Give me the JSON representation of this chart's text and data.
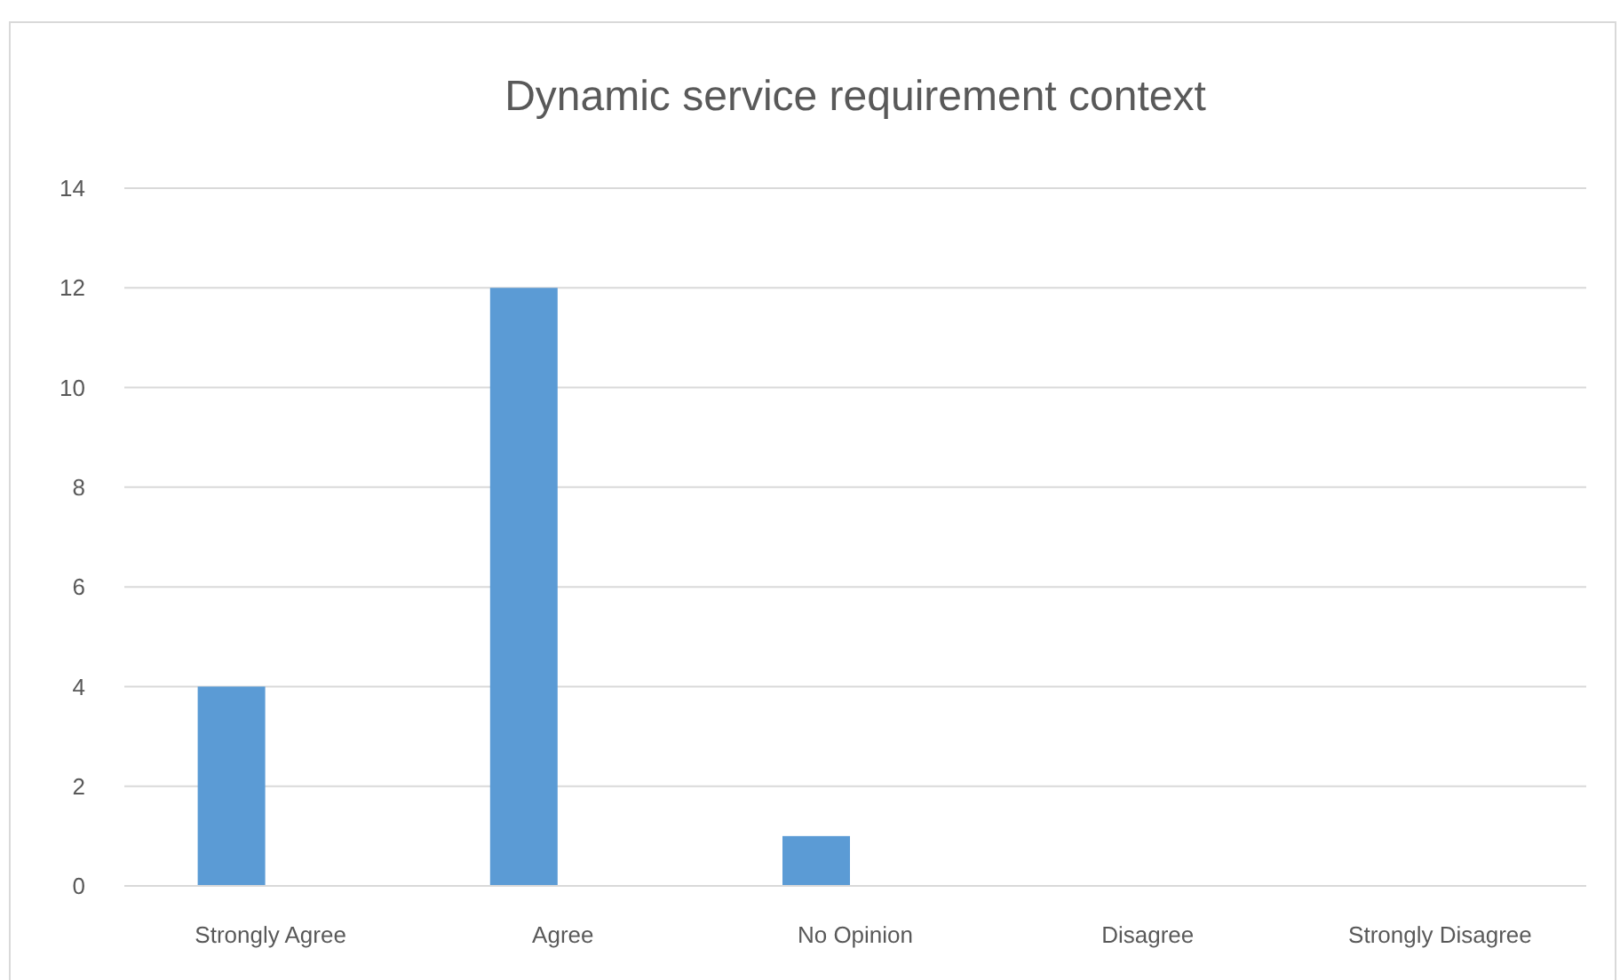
{
  "chart_data": {
    "type": "bar",
    "title": "Dynamic service requirement context",
    "categories": [
      "Strongly Agree",
      "Agree",
      "No Opinion",
      "Disagree",
      "Strongly Disagree"
    ],
    "values": [
      4,
      12,
      1,
      0,
      0
    ],
    "color": "#5b9bd5",
    "ylim": [
      0,
      14
    ],
    "yticks": [
      0,
      2,
      4,
      6,
      8,
      10,
      12,
      14
    ],
    "grid": "y"
  }
}
